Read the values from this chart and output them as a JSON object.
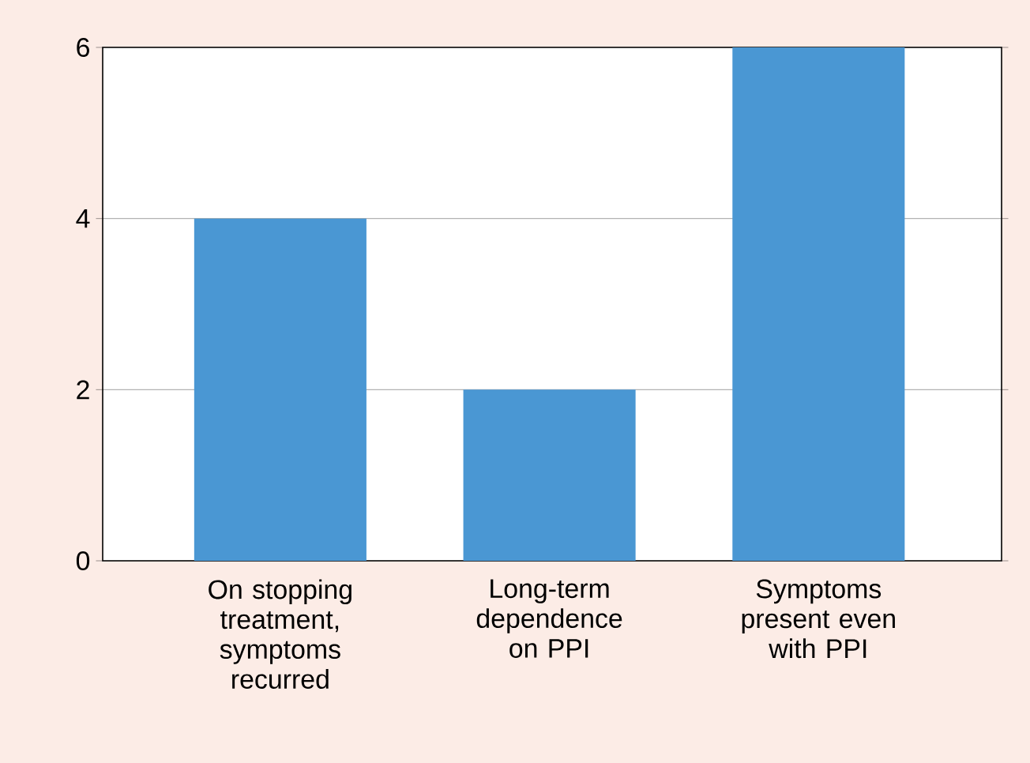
{
  "chart_data": {
    "type": "bar",
    "categories": [
      "On stopping treatment, symptoms recurred",
      "Long-term dependence on PPI",
      "Symptoms present even with PPI"
    ],
    "values": [
      4,
      2,
      6
    ],
    "color": "#4a97d3",
    "ylim": [
      0,
      6
    ],
    "yticks": [
      0,
      2,
      4,
      6
    ],
    "grid": "y"
  }
}
